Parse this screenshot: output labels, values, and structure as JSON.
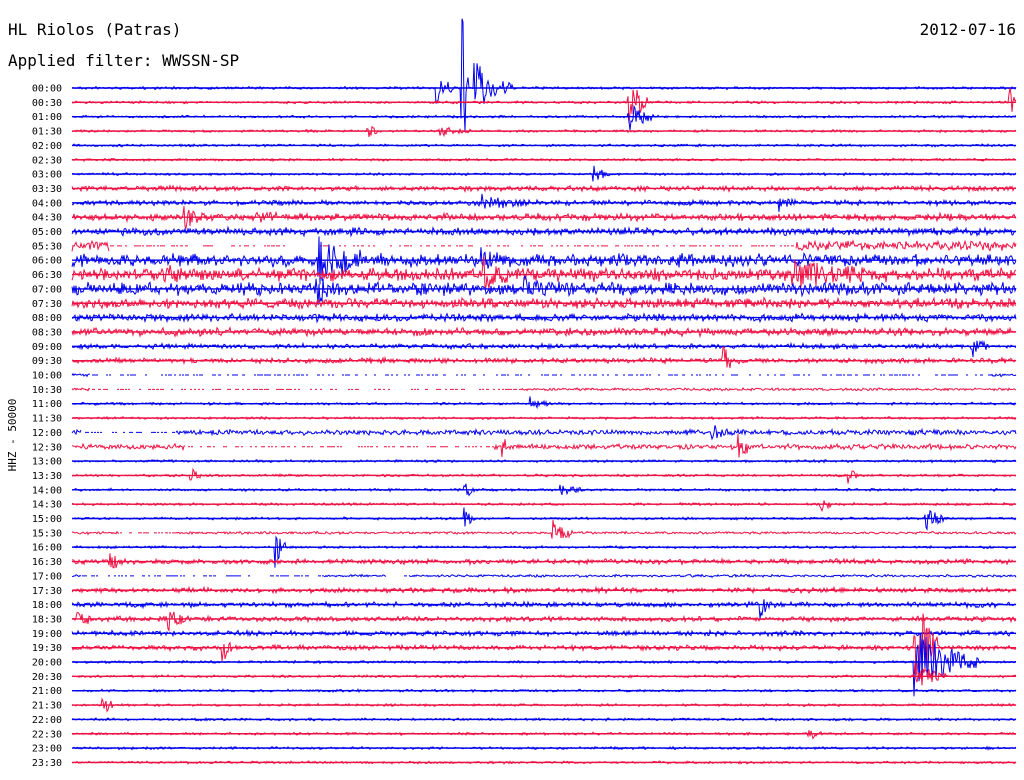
{
  "header": {
    "station": "HL Riolos (Patras)",
    "date": "2012-07-16",
    "filter": "Applied filter: WWSSN-SP",
    "channel": "HHZ - 50000"
  },
  "colors": {
    "even_rows": "#0000ee",
    "odd_rows": "#ee1144"
  },
  "chart_data": {
    "type": "line",
    "title": "HL Riolos (Patras)",
    "subtitle": "Applied filter: WWSSN-SP",
    "ylabel": "HHZ - 50000",
    "date": "2012-07-16",
    "row_labels": [
      "00:00",
      "00:30",
      "01:00",
      "01:30",
      "02:00",
      "02:30",
      "03:00",
      "03:30",
      "04:00",
      "04:30",
      "05:00",
      "05:30",
      "06:00",
      "06:30",
      "07:00",
      "07:30",
      "08:00",
      "08:30",
      "09:00",
      "09:30",
      "10:00",
      "10:30",
      "11:00",
      "11:30",
      "12:00",
      "12:30",
      "13:00",
      "13:30",
      "14:00",
      "14:30",
      "15:00",
      "15:30",
      "16:00",
      "16:30",
      "17:00",
      "17:30",
      "18:00",
      "18:30",
      "19:00",
      "19:30",
      "20:00",
      "20:30",
      "21:00",
      "21:30",
      "22:00",
      "22:30",
      "23:00",
      "23:30"
    ],
    "row_minutes": 30,
    "row_noise": [
      1,
      1,
      1,
      1,
      1,
      1,
      1,
      2,
      2,
      3,
      3,
      4,
      5,
      5,
      5,
      4,
      3,
      3,
      2,
      2,
      1,
      1,
      1,
      1,
      2,
      2,
      1,
      1,
      1,
      1,
      1,
      1,
      1,
      2,
      1,
      2,
      2,
      2,
      2,
      2,
      1,
      1,
      1,
      1,
      1,
      1,
      1,
      1
    ],
    "events": [
      {
        "row": 0,
        "minute": 11.6,
        "amplitude": 14,
        "duration": 0.6
      },
      {
        "row": 0,
        "minute": 12.8,
        "amplitude": 30,
        "duration": 1.2
      },
      {
        "row": 0,
        "minute": 12.4,
        "amplitude": 86,
        "duration": 0.2
      },
      {
        "row": 1,
        "minute": 17.7,
        "amplitude": 30,
        "duration": 0.6
      },
      {
        "row": 1,
        "minute": 29.8,
        "amplitude": 14,
        "duration": 0.3
      },
      {
        "row": 2,
        "minute": 17.7,
        "amplitude": 16,
        "duration": 0.8
      },
      {
        "row": 3,
        "minute": 9.4,
        "amplitude": 8,
        "duration": 0.3
      },
      {
        "row": 3,
        "minute": 11.7,
        "amplitude": 6,
        "duration": 1.0
      },
      {
        "row": 6,
        "minute": 16.6,
        "amplitude": 8,
        "duration": 0.5
      },
      {
        "row": 8,
        "minute": 12.9,
        "amplitude": 8,
        "duration": 1.5
      },
      {
        "row": 8,
        "minute": 22.5,
        "amplitude": 6,
        "duration": 0.5
      },
      {
        "row": 9,
        "minute": 3.6,
        "amplitude": 8,
        "duration": 0.8
      },
      {
        "row": 9,
        "minute": 5.9,
        "amplitude": 6,
        "duration": 0.6
      },
      {
        "row": 12,
        "minute": 7.8,
        "amplitude": 24,
        "duration": 1.4
      },
      {
        "row": 12,
        "minute": 13.0,
        "amplitude": 10,
        "duration": 0.7
      },
      {
        "row": 13,
        "minute": 3.1,
        "amplitude": 12,
        "duration": 0.4
      },
      {
        "row": 13,
        "minute": 13.1,
        "amplitude": 14,
        "duration": 0.8
      },
      {
        "row": 13,
        "minute": 22.9,
        "amplitude": 10,
        "duration": 3.0
      },
      {
        "row": 14,
        "minute": 7.8,
        "amplitude": 16,
        "duration": 0.5
      },
      {
        "row": 14,
        "minute": 14.4,
        "amplitude": 10,
        "duration": 0.8
      },
      {
        "row": 18,
        "minute": 28.6,
        "amplitude": 10,
        "duration": 0.5
      },
      {
        "row": 19,
        "minute": 20.7,
        "amplitude": 14,
        "duration": 0.4
      },
      {
        "row": 22,
        "minute": 14.6,
        "amplitude": 6,
        "duration": 0.6
      },
      {
        "row": 24,
        "minute": 20.3,
        "amplitude": 8,
        "duration": 0.8
      },
      {
        "row": 25,
        "minute": 21.2,
        "amplitude": 16,
        "duration": 0.4
      },
      {
        "row": 25,
        "minute": 13.7,
        "amplitude": 12,
        "duration": 0.2
      },
      {
        "row": 27,
        "minute": 3.8,
        "amplitude": 8,
        "duration": 0.3
      },
      {
        "row": 27,
        "minute": 24.7,
        "amplitude": 8,
        "duration": 0.3
      },
      {
        "row": 28,
        "minute": 12.5,
        "amplitude": 8,
        "duration": 0.3
      },
      {
        "row": 28,
        "minute": 15.5,
        "amplitude": 5,
        "duration": 0.8
      },
      {
        "row": 29,
        "minute": 23.8,
        "amplitude": 8,
        "duration": 0.3
      },
      {
        "row": 30,
        "minute": 27.1,
        "amplitude": 14,
        "duration": 0.6
      },
      {
        "row": 30,
        "minute": 12.5,
        "amplitude": 8,
        "duration": 0.3
      },
      {
        "row": 31,
        "minute": 15.3,
        "amplitude": 14,
        "duration": 0.6
      },
      {
        "row": 32,
        "minute": 6.5,
        "amplitude": 16,
        "duration": 0.3
      },
      {
        "row": 33,
        "minute": 1.2,
        "amplitude": 14,
        "duration": 0.4
      },
      {
        "row": 36,
        "minute": 21.9,
        "amplitude": 12,
        "duration": 0.3
      },
      {
        "row": 37,
        "minute": 3.1,
        "amplitude": 10,
        "duration": 0.5
      },
      {
        "row": 37,
        "minute": 0.2,
        "amplitude": 8,
        "duration": 0.4
      },
      {
        "row": 39,
        "minute": 4.8,
        "amplitude": 14,
        "duration": 0.3
      },
      {
        "row": 39,
        "minute": 26.8,
        "amplitude": 60,
        "duration": 0.8
      },
      {
        "row": 40,
        "minute": 26.8,
        "amplitude": 40,
        "duration": 2.0
      },
      {
        "row": 41,
        "minute": 26.8,
        "amplitude": 14,
        "duration": 1.0
      },
      {
        "row": 43,
        "minute": 1.0,
        "amplitude": 10,
        "duration": 0.3
      },
      {
        "row": 45,
        "minute": 23.4,
        "amplitude": 6,
        "duration": 0.6
      }
    ],
    "gaps": [
      {
        "row": 11,
        "from": 1.2,
        "to": 23.0
      },
      {
        "row": 20,
        "from": 0.6,
        "to": 29.2
      },
      {
        "row": 21,
        "from": 0.6,
        "to": 14.3
      },
      {
        "row": 24,
        "from": 0.3,
        "to": 3.3
      },
      {
        "row": 25,
        "from": 3.6,
        "to": 13.4
      },
      {
        "row": 31,
        "from": 1.5,
        "to": 3.3
      },
      {
        "row": 34,
        "from": 0.3,
        "to": 8.0
      },
      {
        "row": 34,
        "from": 10.0,
        "to": 10.7
      }
    ]
  }
}
